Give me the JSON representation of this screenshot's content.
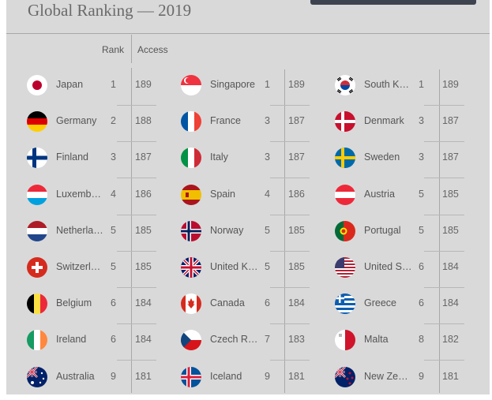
{
  "title": "Global Ranking — 2019",
  "headers": {
    "rank": "Rank",
    "access": "Access"
  },
  "columns": [
    [
      {
        "name": "Japan",
        "rank": "1",
        "access": "189",
        "flag": "japan-flag-icon"
      },
      {
        "name": "Germany",
        "rank": "2",
        "access": "188",
        "flag": "germany-flag-icon"
      },
      {
        "name": "Finland",
        "rank": "3",
        "access": "187",
        "flag": "finland-flag-icon"
      },
      {
        "name": "Luxemb…",
        "rank": "4",
        "access": "186",
        "flag": "luxembourg-flag-icon"
      },
      {
        "name": "Netherla…",
        "rank": "5",
        "access": "185",
        "flag": "netherlands-flag-icon"
      },
      {
        "name": "Switzerl…",
        "rank": "5",
        "access": "185",
        "flag": "switzerland-flag-icon"
      },
      {
        "name": "Belgium",
        "rank": "6",
        "access": "184",
        "flag": "belgium-flag-icon"
      },
      {
        "name": "Ireland",
        "rank": "6",
        "access": "184",
        "flag": "ireland-flag-icon"
      },
      {
        "name": "Australia",
        "rank": "9",
        "access": "181",
        "flag": "australia-flag-icon"
      }
    ],
    [
      {
        "name": "Singapore",
        "rank": "1",
        "access": "189",
        "flag": "singapore-flag-icon"
      },
      {
        "name": "France",
        "rank": "3",
        "access": "187",
        "flag": "france-flag-icon"
      },
      {
        "name": "Italy",
        "rank": "3",
        "access": "187",
        "flag": "italy-flag-icon"
      },
      {
        "name": "Spain",
        "rank": "4",
        "access": "186",
        "flag": "spain-flag-icon"
      },
      {
        "name": "Norway",
        "rank": "5",
        "access": "185",
        "flag": "norway-flag-icon"
      },
      {
        "name": "United K…",
        "rank": "5",
        "access": "185",
        "flag": "united-kingdom-flag-icon"
      },
      {
        "name": "Canada",
        "rank": "6",
        "access": "184",
        "flag": "canada-flag-icon"
      },
      {
        "name": "Czech R…",
        "rank": "7",
        "access": "183",
        "flag": "czech-republic-flag-icon"
      },
      {
        "name": "Iceland",
        "rank": "9",
        "access": "181",
        "flag": "iceland-flag-icon"
      }
    ],
    [
      {
        "name": "South K…",
        "rank": "1",
        "access": "189",
        "flag": "south-korea-flag-icon"
      },
      {
        "name": "Denmark",
        "rank": "3",
        "access": "187",
        "flag": "denmark-flag-icon"
      },
      {
        "name": "Sweden",
        "rank": "3",
        "access": "187",
        "flag": "sweden-flag-icon"
      },
      {
        "name": "Austria",
        "rank": "5",
        "access": "185",
        "flag": "austria-flag-icon"
      },
      {
        "name": "Portugal",
        "rank": "5",
        "access": "185",
        "flag": "portugal-flag-icon"
      },
      {
        "name": "United S…",
        "rank": "6",
        "access": "184",
        "flag": "united-states-flag-icon"
      },
      {
        "name": "Greece",
        "rank": "6",
        "access": "184",
        "flag": "greece-flag-icon"
      },
      {
        "name": "Malta",
        "rank": "8",
        "access": "182",
        "flag": "malta-flag-icon"
      },
      {
        "name": "New Ze…",
        "rank": "9",
        "access": "181",
        "flag": "new-zealand-flag-icon"
      }
    ]
  ]
}
